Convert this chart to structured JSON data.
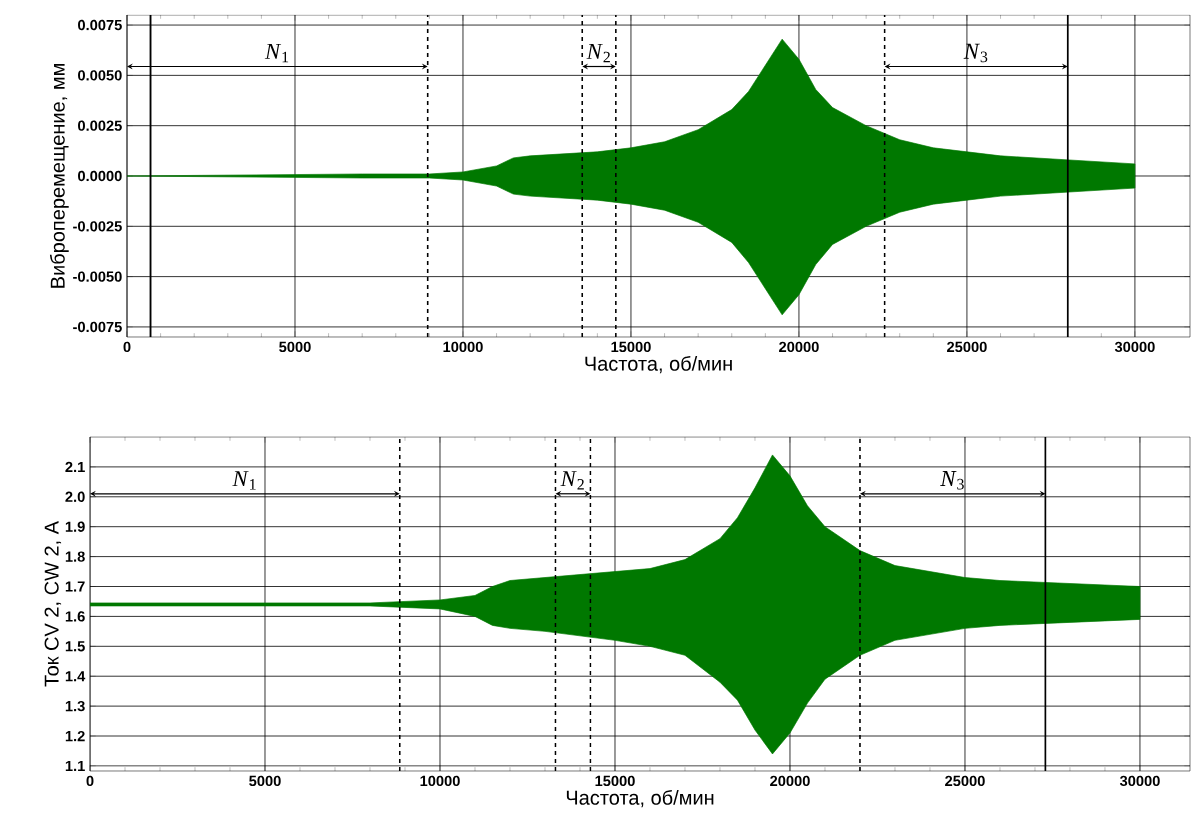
{
  "chart_data": [
    {
      "type": "line",
      "xlabel": "Частота, об/мин",
      "ylabel": "Виброперемещение, мм",
      "xlim": [
        0,
        31640
      ],
      "ylim": [
        -0.008,
        0.008
      ],
      "xticks": [
        0,
        5000,
        10000,
        15000,
        20000,
        25000,
        30000
      ],
      "yticks": [
        {
          "value": -0.0075,
          "label": "-0.0075"
        },
        {
          "value": -0.005,
          "label": "-0.0050"
        },
        -0.0025,
        {
          "value": 0,
          "label": "0.0000"
        },
        0.0025,
        {
          "value": 0.005,
          "label": "0.0050"
        },
        0.0075
      ],
      "grid": true,
      "series": [
        {
          "color": "#007800",
          "x": [
            0,
            7000,
            9000,
            10000,
            11000,
            11500,
            12000,
            14000,
            15000,
            16000,
            17000,
            18000,
            18500,
            19500,
            20000,
            20500,
            21000,
            22000,
            23000,
            24000,
            25000,
            26000,
            28000,
            30000
          ],
          "values": [
            null,
            null,
            null,
            null,
            null,
            null,
            null,
            null,
            null,
            null,
            null,
            null,
            null,
            null,
            null,
            null,
            null,
            null,
            null,
            null,
            null,
            null,
            null,
            null
          ],
          "upper": [
            0,
            0.0001,
            0.0001,
            0.0002,
            0.0005,
            0.0009,
            0.001,
            0.0012,
            0.0014,
            0.0017,
            0.0023,
            0.0033,
            0.0042,
            0.0068,
            0.0058,
            0.0043,
            0.0034,
            0.0025,
            0.0018,
            0.0014,
            0.0012,
            0.001,
            0.0008,
            0.0006
          ],
          "lower": [
            0,
            -0.0001,
            -0.0001,
            -0.0002,
            -0.0005,
            -0.0009,
            -0.001,
            -0.0012,
            -0.0014,
            -0.0017,
            -0.0023,
            -0.0033,
            -0.0043,
            -0.0069,
            -0.0059,
            -0.0044,
            -0.0034,
            -0.0025,
            -0.0018,
            -0.0014,
            -0.0012,
            -0.001,
            -0.0008,
            -0.0006
          ]
        }
      ],
      "ref_lines": [
        {
          "axis": "x",
          "value": 700,
          "line_style": "solid"
        },
        {
          "axis": "x",
          "value": 8950,
          "line_style": "dashed"
        },
        {
          "axis": "x",
          "value": 13550,
          "line_style": "dashed"
        },
        {
          "axis": "x",
          "value": 14550,
          "line_style": "dashed"
        },
        {
          "axis": "x",
          "value": 22550,
          "line_style": "dashed"
        },
        {
          "axis": "x",
          "value": 28000,
          "line_style": "solid"
        }
      ],
      "annotations": [
        "*N*$_{1}$",
        "*N*$_{2}$",
        "*N*$_{3}$"
      ]
    },
    {
      "type": "line",
      "xlabel": "Частота, об/мин",
      "ylabel": "Ток CV 2, CW 2, A",
      "xlim": [
        0,
        31430
      ],
      "ylim": [
        1.083,
        2.2
      ],
      "xticks": [
        0,
        5000,
        10000,
        15000,
        20000,
        25000,
        30000
      ],
      "yticks": [
        1.1,
        1.2,
        1.3,
        1.4,
        1.5,
        1.6,
        1.7,
        1.8,
        1.9,
        {
          "value": 2.0,
          "label": "2.0"
        },
        2.1
      ],
      "grid": true,
      "series": [
        {
          "color": "#007800",
          "x": [
            0,
            8000,
            9000,
            10000,
            11000,
            11500,
            12000,
            13000,
            15000,
            16000,
            17000,
            18000,
            18500,
            19000,
            19500,
            20000,
            20500,
            21000,
            22000,
            23000,
            24000,
            25000,
            26000,
            28000,
            30000
          ],
          "values": [
            null,
            null,
            null,
            null,
            null,
            null,
            null,
            null,
            null,
            null,
            null,
            null,
            null,
            null,
            null,
            null,
            null,
            null,
            null,
            null,
            null,
            null,
            null,
            null,
            null
          ],
          "upper": [
            1.645,
            1.645,
            1.65,
            1.655,
            1.67,
            1.7,
            1.72,
            1.73,
            1.75,
            1.76,
            1.79,
            1.86,
            1.93,
            2.03,
            2.14,
            2.07,
            1.97,
            1.9,
            1.82,
            1.77,
            1.75,
            1.73,
            1.72,
            1.71,
            1.7
          ],
          "lower": [
            1.635,
            1.635,
            1.63,
            1.625,
            1.6,
            1.57,
            1.56,
            1.55,
            1.52,
            1.5,
            1.47,
            1.38,
            1.32,
            1.22,
            1.14,
            1.21,
            1.31,
            1.39,
            1.47,
            1.52,
            1.54,
            1.56,
            1.57,
            1.58,
            1.59
          ]
        }
      ],
      "ref_lines": [
        {
          "axis": "x",
          "value": 8850,
          "line_style": "dashed"
        },
        {
          "axis": "x",
          "value": 13300,
          "line_style": "dashed"
        },
        {
          "axis": "x",
          "value": 14300,
          "line_style": "dashed"
        },
        {
          "axis": "x",
          "value": 22000,
          "line_style": "dashed"
        },
        {
          "axis": "x",
          "value": 27300,
          "line_style": "solid"
        }
      ],
      "annotations": [
        "*N*$_{1}$",
        "*N*$_{2}$",
        "*N*$_{3}$"
      ]
    }
  ]
}
